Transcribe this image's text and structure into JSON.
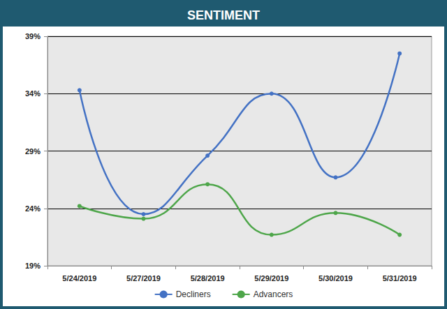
{
  "chart_data": {
    "type": "line",
    "title": "SENTIMENT",
    "categories": [
      "5/24/2019",
      "5/27/2019",
      "5/28/2019",
      "5/29/2019",
      "5/30/2019",
      "5/31/2019"
    ],
    "series": [
      {
        "name": "Decliners",
        "color": "#4472c4",
        "marker": "circle",
        "line_style": "smooth",
        "values": [
          34.3,
          23.5,
          28.6,
          34.0,
          26.7,
          37.5
        ]
      },
      {
        "name": "Advancers",
        "color": "#4ea64a",
        "marker": "circle",
        "line_style": "smooth",
        "values": [
          24.2,
          23.1,
          26.1,
          21.7,
          23.6,
          21.7
        ]
      }
    ],
    "ylim": [
      19,
      39
    ],
    "yticks": [
      {
        "value": 19,
        "label": "19%"
      },
      {
        "value": 24,
        "label": "24%"
      },
      {
        "value": 29,
        "label": "29%"
      },
      {
        "value": 34,
        "label": "34%"
      },
      {
        "value": 39,
        "label": "39%"
      }
    ],
    "grid": true,
    "legend": "bottom"
  }
}
